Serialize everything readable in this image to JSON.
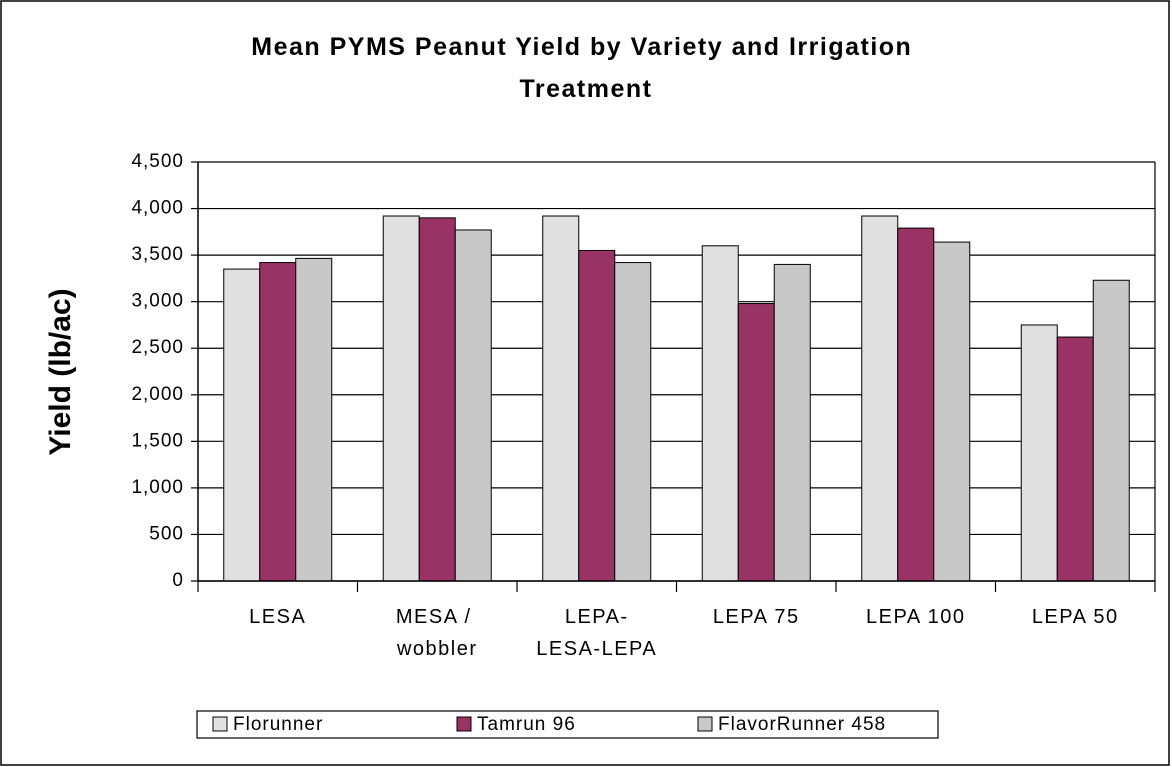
{
  "chart_data": {
    "type": "bar",
    "title": "Mean PYMS Peanut Yield by Variety and Irrigation Treatment",
    "y_label": "Yield (lb/ac)",
    "categories": [
      "LESA",
      "MESA / wobbler",
      "LEPA-LESA-LEPA",
      "LEPA 75",
      "LEPA 100",
      "LEPA 50"
    ],
    "series": [
      {
        "name": "Florunner",
        "color": "#e0e0e0",
        "values": [
          3350,
          3920,
          3920,
          3600,
          3920,
          2750
        ]
      },
      {
        "name": "Tamrun 96",
        "color": "#993366",
        "values": [
          3420,
          3900,
          3550,
          2980,
          3790,
          2620
        ]
      },
      {
        "name": "FlavorRunner 458",
        "color": "#c8c8c8",
        "values": [
          3465,
          3770,
          3420,
          3400,
          3640,
          3230
        ]
      }
    ],
    "ylim": [
      0,
      4500
    ],
    "yticks": [
      0,
      {
        "value": 500,
        "label": "500"
      },
      {
        "value": 1000,
        "label": "1,000"
      },
      {
        "value": 1500,
        "label": "1,500"
      },
      {
        "value": 2000,
        "label": "2,000"
      },
      {
        "value": 2500,
        "label": "2,500"
      },
      {
        "value": 3000,
        "label": "3,000"
      },
      {
        "value": 3500,
        "label": "3,500"
      },
      {
        "value": 4000,
        "label": "4,000"
      },
      {
        "value": 4500,
        "label": "4,500"
      }
    ],
    "grid": true,
    "legend": "bottom"
  }
}
